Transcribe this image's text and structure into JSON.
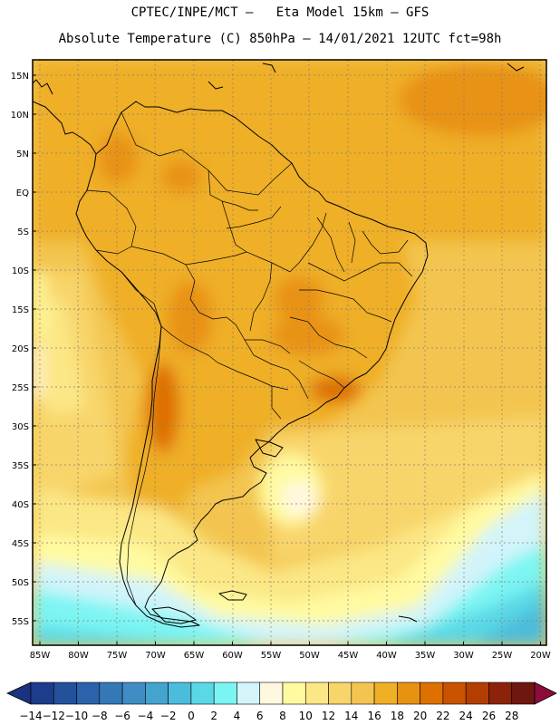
{
  "title_line1": "CPTEC/INPE/MCT –   Eta Model 15km – GFS",
  "title_line2": "Absolute Temperature (C) 850hPa – 14/01/2021 12UTC fct=98h",
  "lat_labels": [
    "15N",
    "10N",
    "5N",
    "EQ",
    "5S",
    "10S",
    "15S",
    "20S",
    "25S",
    "30S",
    "35S",
    "40S",
    "45S",
    "50S",
    "55S"
  ],
  "lon_labels": [
    "85W",
    "80W",
    "75W",
    "70W",
    "65W",
    "60W",
    "55W",
    "50W",
    "45W",
    "40W",
    "35W",
    "30W",
    "25W",
    "20W"
  ],
  "legend": {
    "labels": [
      "-14",
      "-12",
      "-10",
      "-8",
      "-6",
      "-4",
      "-2",
      "0",
      "2",
      "4",
      "6",
      "8",
      "10",
      "12",
      "14",
      "16",
      "18",
      "20",
      "22",
      "24",
      "26",
      "28"
    ],
    "colors": [
      "#1e3c8c",
      "#23519c",
      "#2b62ab",
      "#3578b8",
      "#3f8dc4",
      "#45a3d0",
      "#4cbcdc",
      "#5ad8e6",
      "#7bf5f3",
      "#d2f4fa",
      "#fff8e0",
      "#fffaa0",
      "#fbe785",
      "#f8d56a",
      "#f3c550",
      "#efaf26",
      "#e89212",
      "#de7000",
      "#c95300",
      "#b43e02",
      "#8c2308",
      "#6e1610"
    ],
    "under_color": "#1a3380",
    "over_color": "#8c0c3c"
  }
}
